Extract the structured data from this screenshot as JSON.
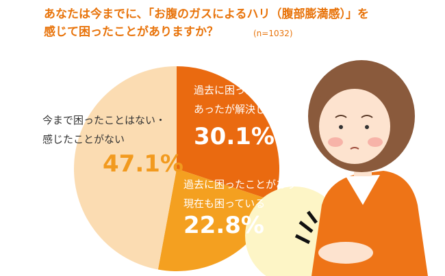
{
  "chart_data": {
    "type": "pie",
    "title": "あなたは今までに、「お腹のガスによるハリ（腹部膨満感）」を\n感じて困ったことがありますか？",
    "subtitle": "(n=1032)",
    "categories": [
      "過去に困ったことが\nあったが解決した",
      "過去に困ったことがあり\n現在も困っている",
      "今まで困ったことはない・\n感じたことがない"
    ],
    "values": [
      30.1,
      22.8,
      47.1
    ],
    "value_labels": [
      "30.1%",
      "22.8%",
      "47.1%"
    ],
    "colors": [
      "#ea6a10",
      "#f4a020",
      "#fbdcb2"
    ]
  }
}
